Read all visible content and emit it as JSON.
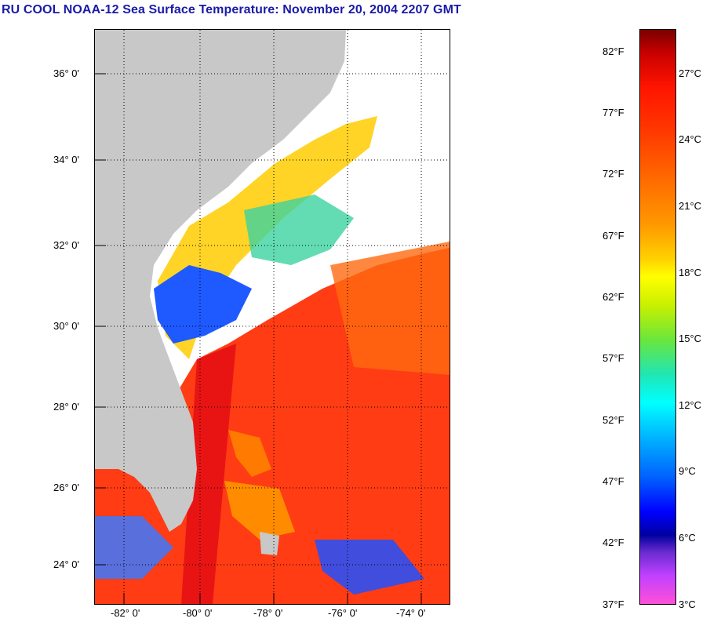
{
  "title": "RU COOL  NOAA-12  Sea Surface Temperature:  November 20, 2004 2207 GMT",
  "map": {
    "lat_labels": [
      "36° 0'",
      "34° 0'",
      "32° 0'",
      "30° 0'",
      "28° 0'",
      "26° 0'",
      "24° 0'"
    ],
    "lon_labels": [
      "-82° 0'",
      "-80° 0'",
      "-78° 0'",
      "-76° 0'",
      "-74° 0'"
    ],
    "colors": {
      "land": "#c8c8c8",
      "cloud": "#ffffff",
      "warm": "#ff3c14",
      "grid": "#000000"
    }
  },
  "colorbar": {
    "fahrenheit_labels": [
      "82°F",
      "77°F",
      "72°F",
      "67°F",
      "62°F",
      "57°F",
      "52°F",
      "47°F",
      "42°F",
      "37°F"
    ],
    "celsius_labels": [
      "27°C",
      "24°C",
      "21°C",
      "18°C",
      "15°C",
      "12°C",
      "9°C",
      "6°C",
      "3°C"
    ],
    "colors": [
      "#7a0000",
      "#ff1400",
      "#ff9900",
      "#ffff00",
      "#6ae63c",
      "#00ffff",
      "#0060ff",
      "#0000ff",
      "#ff50d8"
    ]
  }
}
